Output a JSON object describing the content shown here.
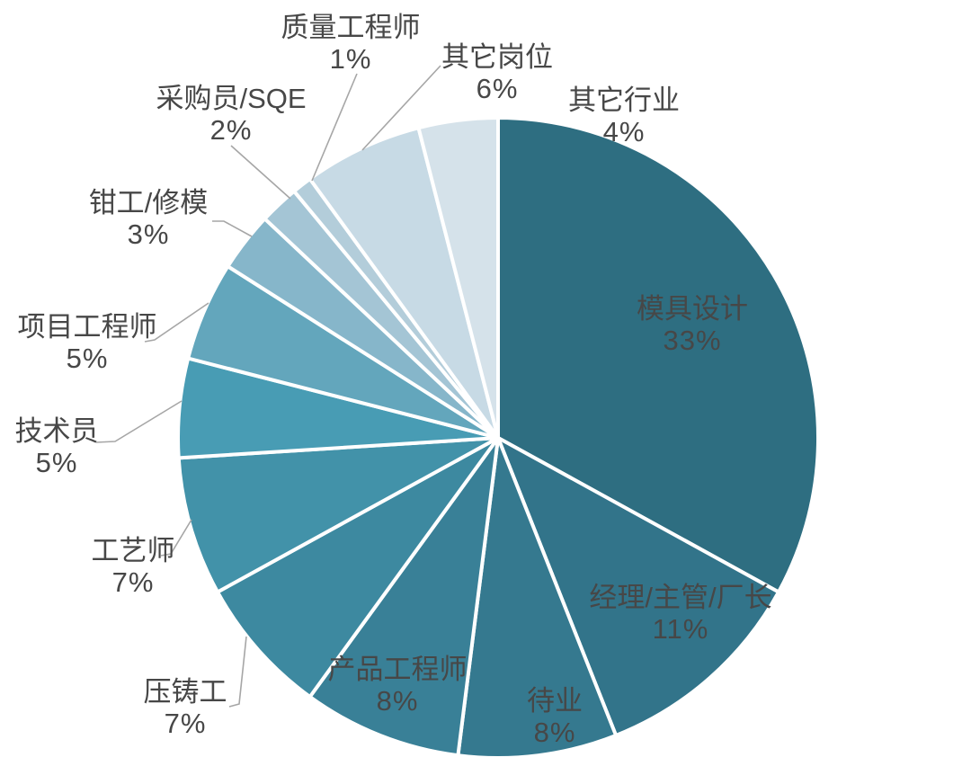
{
  "page": {
    "background_color": "#ffffff"
  },
  "chart_data": {
    "type": "pie",
    "title": "",
    "unit": "%",
    "start_angle_deg": 0,
    "direction": "clockwise",
    "legend": "none",
    "label_color": "#474747",
    "leader_line_color": "#a6a6a6",
    "divider_color": "#ffffff",
    "slices": [
      {
        "name": "模具设计",
        "value": 33,
        "pct_label": "33%",
        "color": "#2E6E81",
        "label_placement": "inside"
      },
      {
        "name": "经理/主管/厂长",
        "value": 11,
        "pct_label": "11%",
        "color": "#32748A",
        "label_placement": "inside"
      },
      {
        "name": "待业",
        "value": 8,
        "pct_label": "8%",
        "color": "#35798F",
        "label_placement": "inside"
      },
      {
        "name": "产品工程师",
        "value": 8,
        "pct_label": "8%",
        "color": "#398097",
        "label_placement": "inside"
      },
      {
        "name": "压铸工",
        "value": 7,
        "pct_label": "7%",
        "color": "#3D89A0",
        "label_placement": "outside"
      },
      {
        "name": "工艺师",
        "value": 7,
        "pct_label": "7%",
        "color": "#4292A9",
        "label_placement": "outside"
      },
      {
        "name": "技术员",
        "value": 5,
        "pct_label": "5%",
        "color": "#489CB4",
        "label_placement": "outside"
      },
      {
        "name": "项目工程师",
        "value": 5,
        "pct_label": "5%",
        "color": "#63A6BC",
        "label_placement": "outside"
      },
      {
        "name": "钳工/修模",
        "value": 3,
        "pct_label": "3%",
        "color": "#86B6CA",
        "label_placement": "outside"
      },
      {
        "name": "采购员/SQE",
        "value": 2,
        "pct_label": "2%",
        "color": "#A4C5D5",
        "label_placement": "outside"
      },
      {
        "name": "质量工程师",
        "value": 1,
        "pct_label": "1%",
        "color": "#B3CDDA",
        "label_placement": "outside"
      },
      {
        "name": "其它岗位",
        "value": 6,
        "pct_label": "6%",
        "color": "#C7DAE5",
        "label_placement": "outside"
      },
      {
        "name": "其它行业",
        "value": 4,
        "pct_label": "4%",
        "color": "#D5E2EA",
        "label_placement": "outside"
      }
    ]
  }
}
